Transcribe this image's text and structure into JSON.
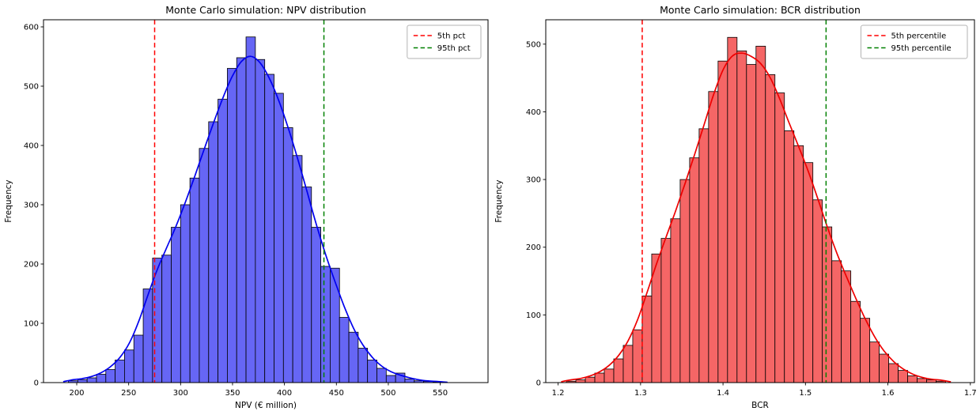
{
  "figure": {
    "background": "#ffffff"
  },
  "chart_data": [
    {
      "type": "histogram",
      "title": "Monte Carlo simulation: NPV distribution",
      "xlabel": "NPV (€ million)",
      "ylabel": "Frequency",
      "xlim": [
        168,
        596
      ],
      "ylim": [
        0,
        612
      ],
      "xticks": [
        200,
        250,
        300,
        350,
        400,
        450,
        500,
        550
      ],
      "xtick_labels": [
        "200",
        "250",
        "300",
        "350",
        "400",
        "450",
        "500",
        "550"
      ],
      "yticks": [
        0,
        100,
        200,
        300,
        400,
        500,
        600
      ],
      "ytick_labels": [
        "0",
        "100",
        "200",
        "300",
        "400",
        "500",
        "600"
      ],
      "grid": false,
      "legend_position": "top-right",
      "bar_fill": "#6666f5",
      "bar_edge": "#000000",
      "curve_color": "#0000ee",
      "bin_start": 192,
      "bin_width": 9,
      "values": [
        3,
        5,
        8,
        14,
        22,
        38,
        55,
        80,
        158,
        210,
        215,
        262,
        300,
        345,
        395,
        440,
        478,
        530,
        548,
        583,
        545,
        520,
        488,
        430,
        383,
        330,
        262,
        196,
        193,
        110,
        85,
        58,
        38,
        24,
        12,
        16,
        6,
        3,
        2,
        1
      ],
      "vlines": [
        {
          "x": 275,
          "color": "#ff0000",
          "label": "5th pct"
        },
        {
          "x": 438,
          "color": "#008000",
          "label": "95th pct"
        }
      ]
    },
    {
      "type": "histogram",
      "title": "Monte Carlo simulation: BCR distribution",
      "xlabel": "BCR",
      "ylabel": "Frequency",
      "xlim": [
        1.185,
        1.705
      ],
      "ylim": [
        0,
        536
      ],
      "xticks": [
        1.2,
        1.3,
        1.4,
        1.5,
        1.6,
        1.7
      ],
      "xtick_labels": [
        "1.2",
        "1.3",
        "1.4",
        "1.5",
        "1.6",
        "1.7"
      ],
      "yticks": [
        0,
        100,
        200,
        300,
        400,
        500
      ],
      "ytick_labels": [
        "0",
        "100",
        "200",
        "300",
        "400",
        "500"
      ],
      "grid": false,
      "legend_position": "top-right",
      "bar_fill": "#f56666",
      "bar_edge": "#000000",
      "curve_color": "#ee0000",
      "bin_start": 1.21,
      "bin_width": 0.0115,
      "values": [
        2,
        4,
        8,
        14,
        20,
        35,
        55,
        78,
        128,
        190,
        213,
        242,
        300,
        332,
        375,
        430,
        475,
        510,
        490,
        470,
        497,
        455,
        428,
        372,
        350,
        325,
        270,
        230,
        180,
        165,
        120,
        95,
        60,
        42,
        28,
        18,
        10,
        6,
        4,
        2
      ],
      "vlines": [
        {
          "x": 1.302,
          "color": "#ff0000",
          "label": "5th percentile"
        },
        {
          "x": 1.525,
          "color": "#008000",
          "label": "95th percentile"
        }
      ]
    }
  ]
}
